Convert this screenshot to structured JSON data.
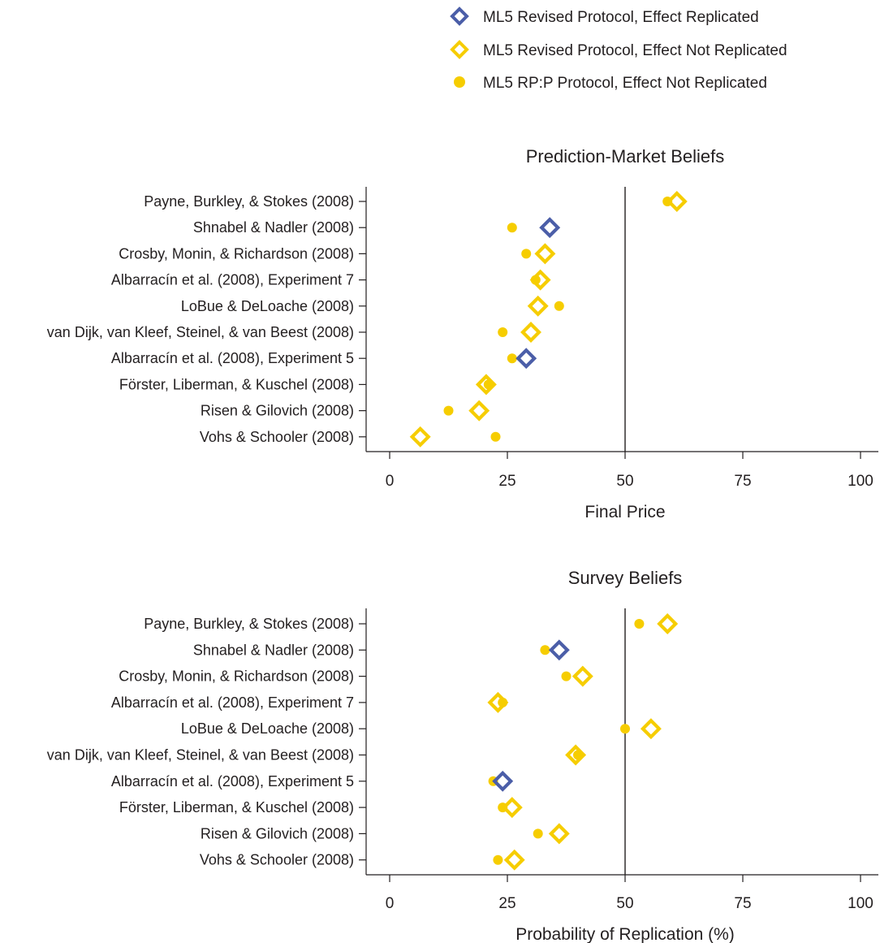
{
  "colors": {
    "replicated": "#4b5ea8",
    "not_replicated": "#f6cd00",
    "axis": "#231f20"
  },
  "legend": [
    {
      "label": "ML5 Revised Protocol, Effect Replicated",
      "marker": "diamond-open",
      "color": "#4b5ea8"
    },
    {
      "label": "ML5 Revised Protocol, Effect Not Replicated",
      "marker": "diamond-open",
      "color": "#f6cd00"
    },
    {
      "label": "ML5 RP:P Protocol, Effect Not Replicated",
      "marker": "dot",
      "color": "#f6cd00"
    }
  ],
  "chart_data": [
    {
      "type": "scatter",
      "title": "Prediction-Market Beliefs",
      "xlabel": "Final Price",
      "xlim": [
        0,
        100
      ],
      "xticks": [
        0,
        25,
        50,
        75,
        100
      ],
      "reference_line": 50,
      "categories": [
        "Payne, Burkley, & Stokes (2008)",
        "Shnabel & Nadler (2008)",
        "Crosby, Monin, & Richardson (2008)",
        "Albarracín et al. (2008), Experiment 7",
        "LoBue & DeLoache (2008)",
        "van Dijk, van Kleef, Steinel, & van Beest (2008)",
        "Albarracín et al. (2008), Experiment 5",
        "Förster, Liberman, & Kuschel (2008)",
        "Risen & Gilovich (2008)",
        "Vohs & Schooler (2008)"
      ],
      "series": [
        {
          "name": "ML5 Revised Protocol",
          "marker": "diamond",
          "values": [
            61,
            34,
            33,
            32,
            31.5,
            30,
            29,
            20.5,
            19,
            6.5
          ],
          "replicated": [
            false,
            true,
            false,
            false,
            false,
            false,
            true,
            false,
            false,
            false
          ]
        },
        {
          "name": "ML5 RP:P Protocol",
          "marker": "dot",
          "values": [
            59,
            26,
            29,
            31,
            36,
            24,
            26,
            21,
            12.5,
            22.5
          ]
        }
      ]
    },
    {
      "type": "scatter",
      "title": "Survey Beliefs",
      "xlabel": "Probability of Replication (%)",
      "xlim": [
        0,
        100
      ],
      "xticks": [
        0,
        25,
        50,
        75,
        100
      ],
      "reference_line": 50,
      "categories": [
        "Payne, Burkley, & Stokes (2008)",
        "Shnabel & Nadler (2008)",
        "Crosby, Monin, & Richardson (2008)",
        "Albarracín et al. (2008), Experiment 7",
        "LoBue & DeLoache (2008)",
        "van Dijk, van Kleef, Steinel, & van Beest (2008)",
        "Albarracín et al. (2008), Experiment 5",
        "Förster, Liberman, & Kuschel (2008)",
        "Risen & Gilovich (2008)",
        "Vohs & Schooler (2008)"
      ],
      "series": [
        {
          "name": "ML5 Revised Protocol",
          "marker": "diamond",
          "values": [
            59,
            36,
            41,
            23,
            55.5,
            39.5,
            24,
            26,
            36,
            26.5
          ],
          "replicated": [
            false,
            true,
            false,
            false,
            false,
            false,
            true,
            false,
            false,
            false
          ]
        },
        {
          "name": "ML5 RP:P Protocol",
          "marker": "dot",
          "values": [
            53,
            33,
            37.5,
            24,
            50,
            40,
            22,
            24,
            31.5,
            23
          ]
        }
      ]
    }
  ]
}
